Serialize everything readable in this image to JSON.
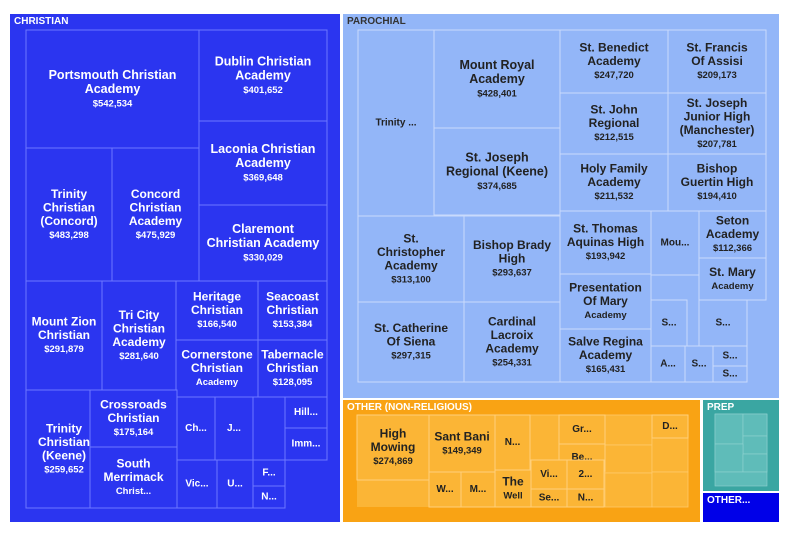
{
  "chart_data": {
    "type": "treemap",
    "title": "",
    "groups": [
      {
        "name": "CHRISTIAN",
        "color": "#2b35f0",
        "text_color": "#ffffff",
        "items": [
          {
            "name": "Portsmouth Christian Academy",
            "label": "Portsmouth Christian Academy",
            "value_label": "$542,534",
            "value": 542534
          },
          {
            "name": "Dublin Christian Academy",
            "label": "Dublin Christian Academy",
            "value_label": "$401,652",
            "value": 401652
          },
          {
            "name": "Trinity Christian (Concord)",
            "label": "Trinity Christian (Concord)",
            "value_label": "$483,298",
            "value": 483298
          },
          {
            "name": "Concord Christian Academy",
            "label": "Concord Christian Academy",
            "value_label": "$475,929",
            "value": 475929
          },
          {
            "name": "Laconia Christian Academy",
            "label": "Laconia Christian Academy",
            "value_label": "$369,648",
            "value": 369648
          },
          {
            "name": "Claremont Christian Academy",
            "label": "Claremont Christian Academy",
            "value_label": "$330,029",
            "value": 330029
          },
          {
            "name": "Mount Zion Christian",
            "label": "Mount Zion Christian",
            "value_label": "$291,879",
            "value": 291879
          },
          {
            "name": "Tri City Christian Academy",
            "label": "Tri City Christian Academy",
            "value_label": "$281,640",
            "value": 281640
          },
          {
            "name": "Heritage Christian",
            "label": "Heritage Christian",
            "value_label": "$166,540",
            "value": 166540
          },
          {
            "name": "Seacoast Christian",
            "label": "Seacoast Christian",
            "value_label": "$153,384",
            "value": 153384
          },
          {
            "name": "Cornerstone Christian Academy",
            "label": "Cornerstone Christian",
            "sub_label": "Academy",
            "value_label": "",
            "value": 140000
          },
          {
            "name": "Tabernacle Christian",
            "label": "Tabernacle Christian",
            "value_label": "$128,095",
            "value": 128095
          },
          {
            "name": "Trinity Christian (Keene)",
            "label": "Trinity Christian (Keene)",
            "value_label": "$259,652",
            "value": 259652
          },
          {
            "name": "Crossroads Christian",
            "label": "Crossroads Christian",
            "value_label": "$175,164",
            "value": 175164
          },
          {
            "name": "South Merrimack Christ...",
            "label": "South Merrimack",
            "sub_label": "Christ...",
            "value_label": "",
            "value": 170000
          },
          {
            "name": "Ch...",
            "label": "Ch...",
            "value_label": "",
            "value": 60000
          },
          {
            "name": "J...",
            "label": "J...",
            "value_label": "",
            "value": 45000
          },
          {
            "name": "Hill...",
            "label": "Hill...",
            "value_label": "",
            "value": 40000
          },
          {
            "name": "Imm...",
            "label": "Imm...",
            "value_label": "",
            "value": 35000
          },
          {
            "name": "Vic...",
            "label": "Vic...",
            "value_label": "",
            "value": 50000
          },
          {
            "name": "U...",
            "label": "U...",
            "value_label": "",
            "value": 40000
          },
          {
            "name": "F...",
            "label": "F...",
            "value_label": "",
            "value": 25000
          },
          {
            "name": "N...",
            "label": "N...",
            "value_label": "",
            "value": 20000
          }
        ]
      },
      {
        "name": "PAROCHIAL",
        "color": "#93b6f8",
        "text_color": "#222222",
        "items": [
          {
            "name": "Trinity ...",
            "label": "Trinity ...",
            "value_label": "",
            "value": 430000
          },
          {
            "name": "Mount Royal Academy",
            "label": "Mount Royal Academy",
            "value_label": "$428,401",
            "value": 428401
          },
          {
            "name": "St. Benedict Academy",
            "label": "St. Benedict Academy",
            "value_label": "$247,720",
            "value": 247720
          },
          {
            "name": "St. Francis Of Assisi",
            "label": "St. Francis Of Assisi",
            "value_label": "$209,173",
            "value": 209173
          },
          {
            "name": "St. John Regional",
            "label": "St. John Regional",
            "value_label": "$212,515",
            "value": 212515
          },
          {
            "name": "St. Joseph Junior High (Manchester)",
            "label": "St. Joseph Junior High (Manchester)",
            "value_label": "$207,781",
            "value": 207781
          },
          {
            "name": "St. Joseph Regional (Keene)",
            "label": "St. Joseph Regional (Keene)",
            "value_label": "$374,685",
            "value": 374685
          },
          {
            "name": "Holy Family Academy",
            "label": "Holy Family Academy",
            "value_label": "$211,532",
            "value": 211532
          },
          {
            "name": "Bishop Guertin High",
            "label": "Bishop Guertin High",
            "value_label": "$194,410",
            "value": 194410
          },
          {
            "name": "St. Christopher Academy",
            "label": "St. Christopher Academy",
            "value_label": "$313,100",
            "value": 313100
          },
          {
            "name": "Bishop Brady High",
            "label": "Bishop Brady High",
            "value_label": "$293,637",
            "value": 293637
          },
          {
            "name": "St. Thomas Aquinas High",
            "label": "St. Thomas Aquinas High",
            "value_label": "$193,942",
            "value": 193942
          },
          {
            "name": "Mou...",
            "label": "Mou...",
            "value_label": "",
            "value": 90000
          },
          {
            "name": "Seton Academy",
            "label": "Seton Academy",
            "value_label": "$112,366",
            "value": 112366
          },
          {
            "name": "St. Mary Academy",
            "label": "St. Mary",
            "sub_label": "Academy",
            "value_label": "",
            "value": 100000
          },
          {
            "name": "St. Catherine Of Siena",
            "label": "St. Catherine Of Siena",
            "value_label": "$297,315",
            "value": 297315
          },
          {
            "name": "Cardinal Lacroix Academy",
            "label": "Cardinal Lacroix Academy",
            "value_label": "$254,331",
            "value": 254331
          },
          {
            "name": "Presentation Of Mary Academy",
            "label": "Presentation Of Mary",
            "sub_label": "Academy",
            "value_label": "",
            "value": 170000
          },
          {
            "name": "Salve Regina Academy",
            "label": "Salve Regina Academy",
            "value_label": "$165,431",
            "value": 165431
          },
          {
            "name": "S...",
            "label": "S...",
            "value_label": "",
            "value": 50000
          },
          {
            "name": "S...",
            "label": "S...",
            "value_label": "",
            "value": 45000
          },
          {
            "name": "A...",
            "label": "A...",
            "value_label": "",
            "value": 40000
          },
          {
            "name": "S...",
            "label": "S...",
            "value_label": "",
            "value": 35000
          },
          {
            "name": "S...",
            "label": "S...",
            "value_label": "",
            "value": 30000
          },
          {
            "name": "S...",
            "label": "S...",
            "value_label": "",
            "value": 28000
          }
        ]
      },
      {
        "name": "OTHER (NON-RELIGIOUS)",
        "color": "#fbb536",
        "text_color": "#222222",
        "items": [
          {
            "name": "High Mowing",
            "label": "High Mowing",
            "value_label": "$274,869",
            "value": 274869
          },
          {
            "name": "Sant Bani",
            "label": "Sant Bani",
            "value_label": "$149,349",
            "value": 149349
          },
          {
            "name": "N...",
            "label": "N...",
            "value_label": "",
            "value": 55000
          },
          {
            "name": "Gr...",
            "label": "Gr...",
            "value_label": "",
            "value": 50000
          },
          {
            "name": "Be...",
            "label": "Be...",
            "value_label": "",
            "value": 40000
          },
          {
            "name": "D...",
            "label": "D...",
            "value_label": "",
            "value": 35000
          },
          {
            "name": "W...",
            "label": "W...",
            "value_label": "",
            "value": 45000
          },
          {
            "name": "M...",
            "label": "M...",
            "value_label": "",
            "value": 40000
          },
          {
            "name": "The Well",
            "label": "The",
            "sub_label": "Well",
            "value_label": "",
            "value": 50000
          },
          {
            "name": "Vi...",
            "label": "Vi...",
            "value_label": "",
            "value": 35000
          },
          {
            "name": "Se...",
            "label": "Se...",
            "value_label": "",
            "value": 30000
          },
          {
            "name": "2...",
            "label": "2...",
            "value_label": "",
            "value": 30000
          },
          {
            "name": "N...",
            "label": "N...",
            "value_label": "",
            "value": 28000
          }
        ]
      },
      {
        "name": "PREP",
        "color": "#3aa6a2",
        "text_color": "#ffffff",
        "items": []
      },
      {
        "name": "OTHER...",
        "color": "#0000e8",
        "text_color": "#ffffff",
        "items": []
      }
    ]
  }
}
